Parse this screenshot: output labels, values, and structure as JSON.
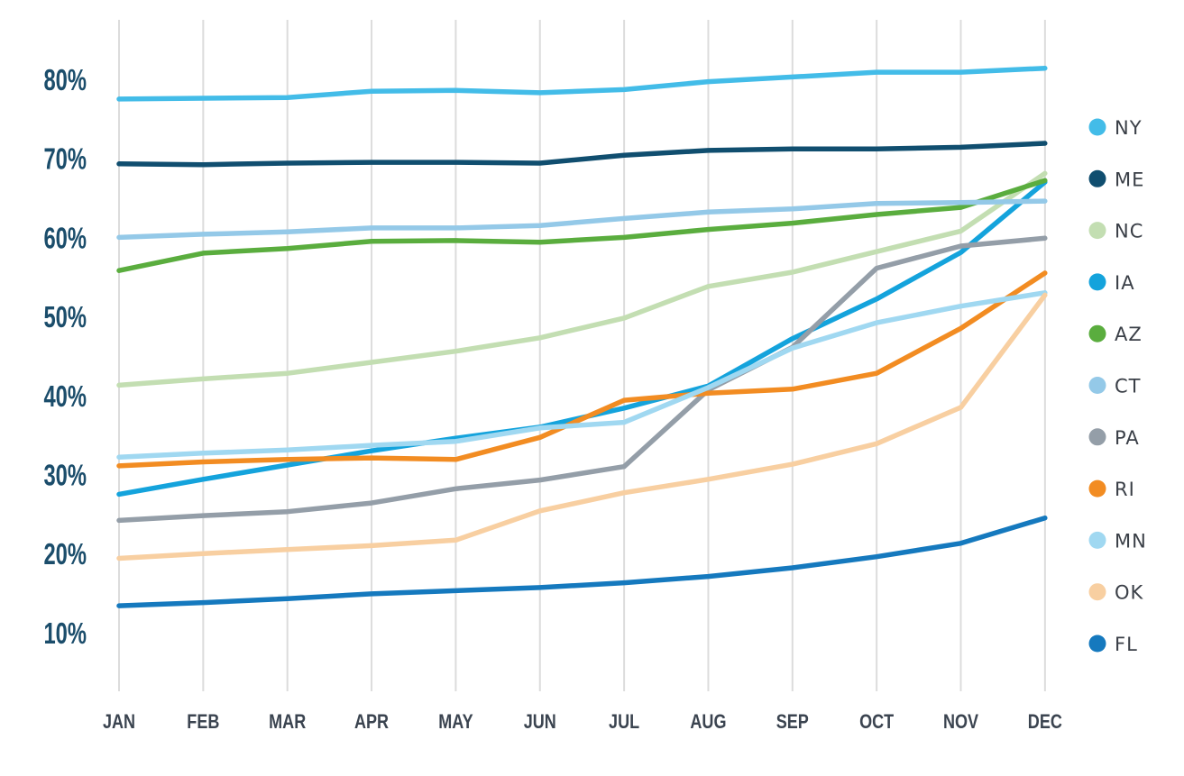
{
  "chart_data": {
    "type": "line",
    "title": "",
    "xlabel": "",
    "ylabel": "",
    "categories": [
      "JAN",
      "FEB",
      "MAR",
      "APR",
      "MAY",
      "JUN",
      "JUL",
      "AUG",
      "SEP",
      "OCT",
      "NOV",
      "DEC"
    ],
    "y_ticks": [
      "10%",
      "20%",
      "30%",
      "40%",
      "50%",
      "60%",
      "70%",
      "80%"
    ],
    "y_tick_values": [
      10,
      20,
      30,
      40,
      50,
      60,
      70,
      80
    ],
    "ylim": [
      3,
      86
    ],
    "grid": "vertical",
    "legend_position": "right",
    "series": [
      {
        "name": "NY",
        "color": "#43bce8",
        "values": [
          77.5,
          77.6,
          77.7,
          78.5,
          78.6,
          78.3,
          78.7,
          79.7,
          80.3,
          80.9,
          80.9,
          81.4
        ]
      },
      {
        "name": "ME",
        "color": "#104e6f",
        "values": [
          69.3,
          69.2,
          69.4,
          69.5,
          69.5,
          69.4,
          70.4,
          71.0,
          71.2,
          71.2,
          71.4,
          71.9
        ]
      },
      {
        "name": "NC",
        "color": "#c3deb2",
        "values": [
          41.3,
          42.1,
          42.8,
          44.2,
          45.6,
          47.3,
          49.8,
          53.8,
          55.6,
          58.2,
          60.8,
          68.1
        ]
      },
      {
        "name": "IA",
        "color": "#14a3dc",
        "values": [
          27.5,
          29.4,
          31.2,
          33.0,
          34.6,
          36.0,
          38.4,
          41.2,
          47.2,
          52.2,
          58.1,
          67.0
        ]
      },
      {
        "name": "AZ",
        "color": "#5aad3e",
        "values": [
          55.8,
          58.0,
          58.6,
          59.5,
          59.6,
          59.4,
          60.0,
          61.0,
          61.8,
          62.9,
          63.8,
          67.2
        ]
      },
      {
        "name": "CT",
        "color": "#94c9e8",
        "values": [
          60.0,
          60.4,
          60.7,
          61.2,
          61.2,
          61.5,
          62.4,
          63.2,
          63.6,
          64.3,
          64.4,
          64.6
        ]
      },
      {
        "name": "PA",
        "color": "#949ea8",
        "values": [
          24.2,
          24.8,
          25.3,
          26.4,
          28.2,
          29.3,
          31.0,
          40.7,
          46.1,
          56.1,
          58.9,
          59.9
        ]
      },
      {
        "name": "RI",
        "color": "#f28c22",
        "values": [
          31.1,
          31.6,
          31.9,
          32.1,
          31.9,
          34.7,
          39.4,
          40.3,
          40.8,
          42.8,
          48.5,
          55.5
        ]
      },
      {
        "name": "MN",
        "color": "#a0d8f1",
        "values": [
          32.2,
          32.7,
          33.1,
          33.7,
          34.2,
          35.9,
          36.6,
          41.0,
          46.0,
          49.2,
          51.3,
          53.0
        ]
      },
      {
        "name": "OK",
        "color": "#f8cfa1",
        "values": [
          19.4,
          20.0,
          20.5,
          21.0,
          21.7,
          25.4,
          27.7,
          29.4,
          31.3,
          33.9,
          38.5,
          52.7
        ]
      },
      {
        "name": "FL",
        "color": "#1579be",
        "values": [
          13.4,
          13.8,
          14.3,
          14.9,
          15.3,
          15.7,
          16.3,
          17.1,
          18.2,
          19.6,
          21.3,
          24.5
        ]
      }
    ]
  },
  "legend": {
    "items": [
      {
        "label": "NY",
        "color": "#43bce8"
      },
      {
        "label": "ME",
        "color": "#104e6f"
      },
      {
        "label": "NC",
        "color": "#c3deb2"
      },
      {
        "label": "IA",
        "color": "#14a3dc"
      },
      {
        "label": "AZ",
        "color": "#5aad3e"
      },
      {
        "label": "CT",
        "color": "#94c9e8"
      },
      {
        "label": "PA",
        "color": "#949ea8"
      },
      {
        "label": "RI",
        "color": "#f28c22"
      },
      {
        "label": "MN",
        "color": "#a0d8f1"
      },
      {
        "label": "OK",
        "color": "#f8cfa1"
      },
      {
        "label": "FL",
        "color": "#1579be"
      }
    ]
  },
  "colors": {
    "y_tick_text": "#1b4d6b",
    "x_tick_text": "#3b4450",
    "grid": "#dcdcdc",
    "background": "#ffffff"
  }
}
